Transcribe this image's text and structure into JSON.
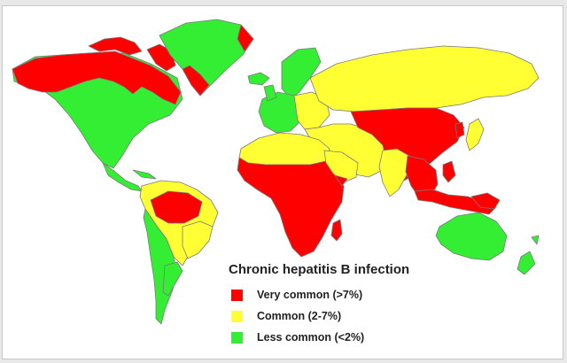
{
  "legend": {
    "title": "Chronic hepatitis B infection",
    "items": [
      {
        "label": "Very common (>7%)",
        "color": "#ff0000"
      },
      {
        "label": "Common (2-7%)",
        "color": "#ffff33"
      },
      {
        "label": "Less common (<2%)",
        "color": "#33ee33"
      }
    ]
  },
  "colors": {
    "very_common": "#ff0000",
    "common": "#ffff33",
    "less_common": "#33ee33",
    "border": "#7a7a7a"
  }
}
